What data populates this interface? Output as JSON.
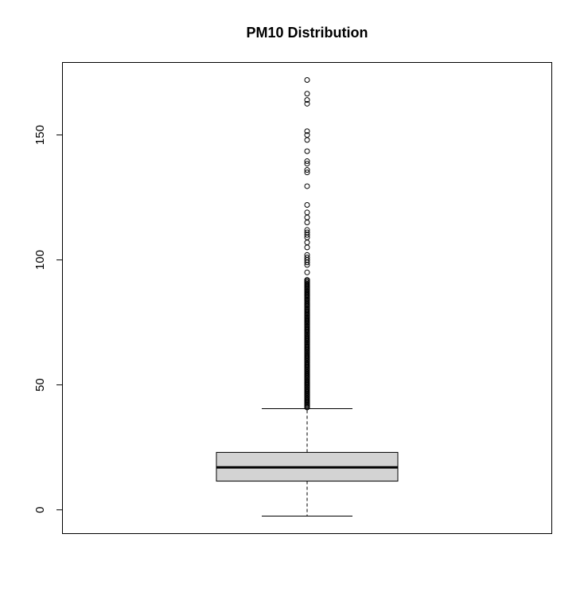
{
  "chart_data": {
    "type": "box",
    "title": "PM10 Distribution",
    "xlabel": "",
    "ylabel": "",
    "ylim": [
      -9.5,
      179
    ],
    "yticks": [
      0,
      50,
      100,
      150
    ],
    "grid": false,
    "box": {
      "whisker_low": -2.5,
      "q1": 11.5,
      "median": 17,
      "q3": 23,
      "whisker_high": 40.5,
      "fill": "#d3d3d3"
    },
    "outliers": [
      41,
      42,
      43,
      44,
      45,
      46,
      47,
      48,
      49,
      50,
      51,
      52,
      53,
      54,
      55,
      56,
      57,
      58,
      59,
      60,
      61,
      62,
      63,
      64,
      65,
      66,
      67,
      68,
      69,
      70,
      71,
      72,
      73,
      74,
      75,
      76,
      77,
      78,
      80,
      82,
      84,
      86,
      87,
      88,
      89,
      90,
      91,
      92,
      95,
      98,
      99,
      100,
      101,
      102,
      105,
      107,
      109,
      110,
      111,
      112,
      115,
      117,
      119,
      122,
      129.5,
      135,
      136,
      138.5,
      139.5,
      143.5,
      148,
      150,
      151.5,
      162.5,
      164,
      166.5,
      172
    ]
  }
}
